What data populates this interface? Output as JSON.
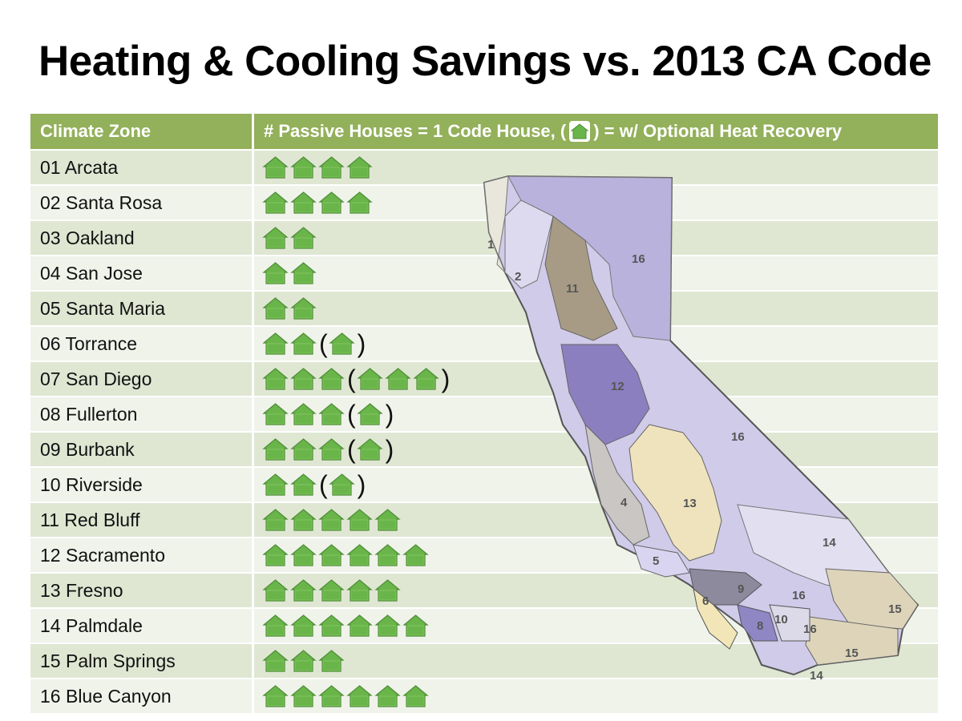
{
  "title": "Heating & Cooling Savings vs. 2013 CA Code",
  "table": {
    "header_zone": "Climate Zone",
    "header_count_prefix": "# Passive Houses = 1 Code House,  (",
    "header_count_suffix": ") = w/ Optional Heat Recovery",
    "rows": [
      {
        "label": "01 Arcata",
        "houses": 4,
        "optional": 0
      },
      {
        "label": "02 Santa Rosa",
        "houses": 4,
        "optional": 0
      },
      {
        "label": "03 Oakland",
        "houses": 2,
        "optional": 0
      },
      {
        "label": "04 San Jose",
        "houses": 2,
        "optional": 0
      },
      {
        "label": "05 Santa Maria",
        "houses": 2,
        "optional": 0
      },
      {
        "label": "06 Torrance",
        "houses": 2,
        "optional": 1
      },
      {
        "label": "07 San Diego",
        "houses": 3,
        "optional": 3
      },
      {
        "label": "08 Fullerton",
        "houses": 3,
        "optional": 1
      },
      {
        "label": "09 Burbank",
        "houses": 3,
        "optional": 1
      },
      {
        "label": "10 Riverside",
        "houses": 2,
        "optional": 1
      },
      {
        "label": "11 Red Bluff",
        "houses": 5,
        "optional": 0
      },
      {
        "label": "12 Sacramento",
        "houses": 6,
        "optional": 0
      },
      {
        "label": "13 Fresno",
        "houses": 5,
        "optional": 0
      },
      {
        "label": "14 Palmdale",
        "houses": 6,
        "optional": 0
      },
      {
        "label": "15 Palm Springs",
        "houses": 3,
        "optional": 0
      },
      {
        "label": "16 Blue Canyon",
        "houses": 6,
        "optional": 0
      }
    ]
  },
  "icons": {
    "house": "house-icon",
    "house_color": "#6ab54a"
  },
  "map": {
    "zone_labels": [
      "1",
      "2",
      "11",
      "16",
      "12",
      "16",
      "13",
      "4",
      "5",
      "14",
      "9",
      "6",
      "16",
      "8",
      "10",
      "16",
      "15",
      "15",
      "14"
    ]
  }
}
